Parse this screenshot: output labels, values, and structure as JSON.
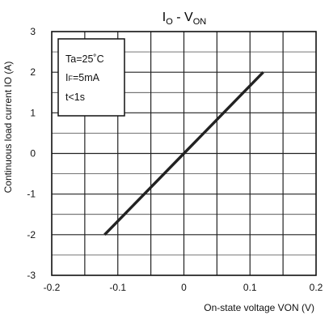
{
  "chart_data": {
    "type": "line",
    "title_main": "I",
    "title_sub1": "O",
    "title_dash": " - V",
    "title_sub2": "ON",
    "xlabel": "On-state voltage VON (V)",
    "ylabel": "Continuous load current IO (A)",
    "xlim": [
      -0.2,
      0.2
    ],
    "ylim": [
      -3,
      3
    ],
    "xticks": [
      "-0.2",
      "-0.1",
      "0",
      "0.1",
      "0.2"
    ],
    "yticks": [
      "3",
      "2",
      "1",
      "0",
      "-1",
      "-2",
      "-3"
    ],
    "grid": true,
    "conditions": {
      "temp": "Ta=25˚C",
      "if_prefix": "I",
      "if_sub": "F",
      "if_value": "=5mA",
      "time": "t<1s"
    },
    "series": [
      {
        "x": [
          -0.12,
          0.0,
          0.12
        ],
        "y": [
          -2,
          0,
          2
        ]
      }
    ],
    "colors": {
      "line": "#222222",
      "grid": "#222222",
      "background": "#ffffff"
    }
  }
}
